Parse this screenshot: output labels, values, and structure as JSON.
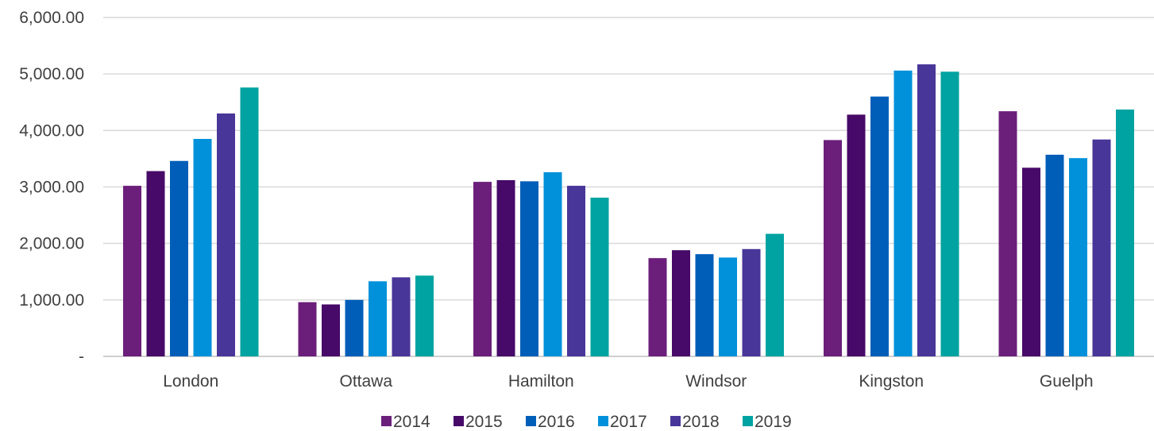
{
  "chart_data": {
    "type": "bar",
    "categories": [
      "London",
      "Ottawa",
      "Hamilton",
      "Windsor",
      "Kingston",
      "Guelph"
    ],
    "series": [
      {
        "name": "2014",
        "color": "#6B1F7B",
        "values": [
          3020,
          960,
          3090,
          1740,
          3830,
          4340
        ]
      },
      {
        "name": "2015",
        "color": "#470A68",
        "values": [
          3280,
          920,
          3120,
          1880,
          4280,
          3340
        ]
      },
      {
        "name": "2016",
        "color": "#005EB8",
        "values": [
          3460,
          1000,
          3100,
          1810,
          4600,
          3570
        ]
      },
      {
        "name": "2017",
        "color": "#0091DA",
        "values": [
          3850,
          1330,
          3260,
          1750,
          5060,
          3510
        ]
      },
      {
        "name": "2018",
        "color": "#483698",
        "values": [
          4300,
          1400,
          3020,
          1900,
          5170,
          3840
        ]
      },
      {
        "name": "2019",
        "color": "#00A3A1",
        "values": [
          4760,
          1430,
          2810,
          2170,
          5040,
          4370
        ]
      }
    ],
    "y_ticks": [
      "-",
      "1,000.00",
      "2,000.00",
      "3,000.00",
      "4,000.00",
      "5,000.00",
      "6,000.00"
    ],
    "ylim": [
      0,
      6000
    ],
    "grid": true,
    "legend_position": "bottom"
  }
}
